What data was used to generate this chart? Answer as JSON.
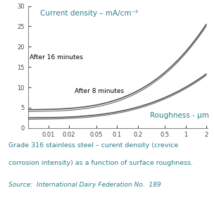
{
  "title": "Current density – mA/cm⁻²",
  "xlabel": "Roughness - μm",
  "ylabel_ticks": [
    0,
    5,
    10,
    15,
    20,
    25,
    30
  ],
  "xlim_log": [
    -2.3,
    0.32
  ],
  "ylim": [
    0,
    30
  ],
  "xticks": [
    0.01,
    0.02,
    0.05,
    0.1,
    0.2,
    0.5,
    1,
    2
  ],
  "xtick_labels": [
    "0.01",
    "0.02",
    "0.05",
    "0.1",
    "0.2",
    "0.5",
    "1",
    "2"
  ],
  "curve_color": "#555555",
  "title_color": "#2a7f8a",
  "label_color": "#2a7f8a",
  "label_16min": "After 16 minutes",
  "label_8min": "After 8 minutes",
  "caption_line1": "Grade 316 stainless steel – curent density (crevice",
  "caption_line2": "corrosion intensity) as a function of surface roughness.",
  "caption_source": "Source:  International Dairy Federation No.  189",
  "caption_color": "#2a7f8a",
  "bg_color": "#ffffff"
}
